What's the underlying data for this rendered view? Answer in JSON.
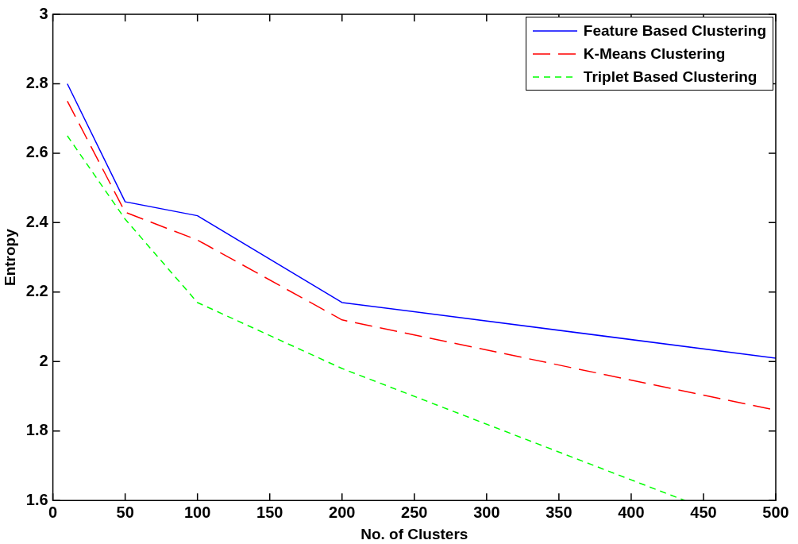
{
  "chart_data": {
    "type": "line",
    "xlabel": "No. of Clusters",
    "ylabel": "Entropy",
    "x": [
      10,
      50,
      100,
      200,
      500
    ],
    "series": [
      {
        "name": "Feature Based Clustering",
        "color": "#0000ff",
        "line_style": "solid",
        "values": [
          2.8,
          2.46,
          2.42,
          2.17,
          2.01
        ]
      },
      {
        "name": "K-Means Clustering",
        "color": "#ff0000",
        "line_style": "dashed",
        "values": [
          2.75,
          2.43,
          2.35,
          2.12,
          1.86
        ]
      },
      {
        "name": "Triplet Based Clustering",
        "color": "#00ff00",
        "line_style": "dotted",
        "x": [
          10,
          50,
          100,
          200,
          437
        ],
        "values": [
          2.65,
          2.41,
          2.17,
          1.98,
          1.6
        ]
      }
    ],
    "xlim": [
      0,
      500
    ],
    "xticks": [
      0,
      50,
      100,
      150,
      200,
      250,
      300,
      350,
      400,
      450,
      500
    ],
    "ylim": [
      1.6,
      3
    ],
    "yticks": [
      1.6,
      1.8,
      2,
      2.2,
      2.4,
      2.6,
      2.8,
      3
    ],
    "grid": false,
    "legend": "top right",
    "marker": "none"
  }
}
